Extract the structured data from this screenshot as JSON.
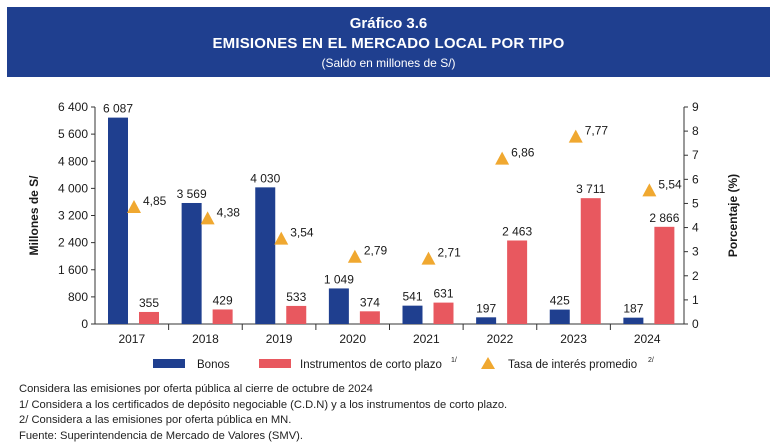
{
  "header": {
    "number": "Gráfico 3.6",
    "title": "EMISIONES EN EL MERCADO LOCAL POR TIPO",
    "subtitle": "(Saldo en millones de S/)"
  },
  "chart_data": {
    "type": "bar",
    "categories": [
      "2017",
      "2018",
      "2019",
      "2020",
      "2021",
      "2022",
      "2023",
      "2024"
    ],
    "ylabel": "Millones de S/",
    "ylabel_right": "Porcentaje (%)",
    "ylim": [
      0,
      6400
    ],
    "y_ticks": [
      "0",
      "800",
      "1 600",
      "2 400",
      "3 200",
      "4 000",
      "4 800",
      "5 600",
      "6 400"
    ],
    "ylim_right": [
      0,
      9
    ],
    "y2_ticks": [
      "0",
      "1",
      "2",
      "3",
      "4",
      "5",
      "6",
      "7",
      "8",
      "9"
    ],
    "series": [
      {
        "name": "Bonos",
        "kind": "bar",
        "color": "#1f3f8f",
        "values": [
          6087,
          3569,
          4030,
          1049,
          541,
          197,
          425,
          187
        ],
        "labels": [
          "6 087",
          "3 569",
          "4 030",
          "1 049",
          "541",
          "197",
          "425",
          "187"
        ]
      },
      {
        "name": "Instrumentos de corto plazo",
        "legend_note": "1/",
        "kind": "bar",
        "color": "#e8585f",
        "values": [
          355,
          429,
          533,
          374,
          631,
          2463,
          3711,
          2866
        ],
        "labels": [
          "355",
          "429",
          "533",
          "374",
          "631",
          "2 463",
          "3 711",
          "2 866"
        ]
      },
      {
        "name": "Tasa de interés promedio",
        "legend_note": "2/",
        "kind": "marker",
        "axis": "right",
        "color": "#f0a830",
        "values": [
          4.85,
          4.38,
          3.54,
          2.79,
          2.71,
          6.86,
          7.77,
          5.54
        ],
        "labels": [
          "4,85",
          "4,38",
          "3,54",
          "2,79",
          "2,71",
          "6,86",
          "7,77",
          "5,54"
        ]
      }
    ],
    "grid": false,
    "legend": "bottom"
  },
  "notes": [
    "Considera las emisiones por oferta pública al cierre de octubre de 2024",
    "1/ Considera a los certificados de depósito negociable (C.D.N) y a los instrumentos de corto plazo.",
    "2/ Considera a las emisiones por oferta pública en MN.",
    "Fuente: Superintendencia de Mercado de Valores (SMV)."
  ]
}
